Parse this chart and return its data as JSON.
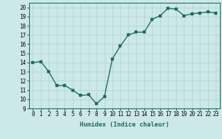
{
  "x": [
    0,
    1,
    2,
    3,
    4,
    5,
    6,
    7,
    8,
    9,
    10,
    11,
    12,
    13,
    14,
    15,
    16,
    17,
    18,
    19,
    20,
    21,
    22,
    23
  ],
  "y": [
    14.0,
    14.1,
    13.0,
    11.5,
    11.5,
    11.0,
    10.4,
    10.5,
    9.5,
    10.3,
    14.4,
    15.8,
    17.0,
    17.3,
    17.3,
    18.7,
    19.1,
    19.9,
    19.8,
    19.1,
    19.3,
    19.4,
    19.5,
    19.4
  ],
  "line_color": "#1a6b5a",
  "marker_color": "#1a6b5a",
  "bg_color": "#cce8e8",
  "grid_color": "#b0d0d0",
  "xlabel": "Humidex (Indice chaleur)",
  "ylim": [
    9,
    20.5
  ],
  "xlim": [
    -0.5,
    23.5
  ],
  "yticks": [
    9,
    10,
    11,
    12,
    13,
    14,
    15,
    16,
    17,
    18,
    19,
    20
  ],
  "xticks": [
    0,
    1,
    2,
    3,
    4,
    5,
    6,
    7,
    8,
    9,
    10,
    11,
    12,
    13,
    14,
    15,
    16,
    17,
    18,
    19,
    20,
    21,
    22,
    23
  ],
  "tick_fontsize": 5.5,
  "label_fontsize": 6.5,
  "line_width": 1.0,
  "marker_size": 2.5
}
